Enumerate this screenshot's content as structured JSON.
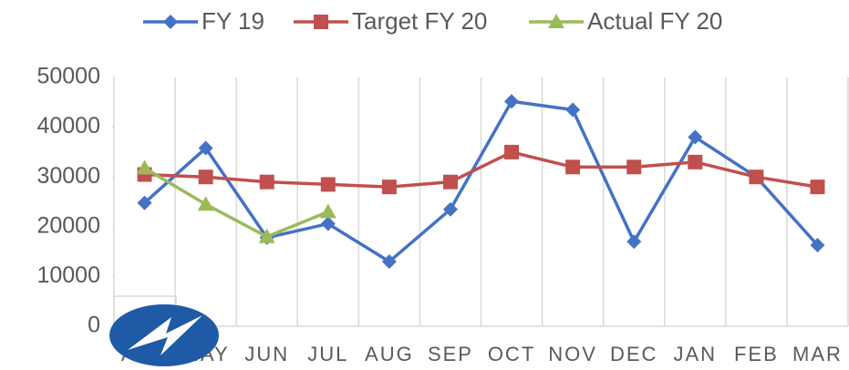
{
  "chart_data": {
    "type": "line",
    "categories": [
      "APR",
      "MAY",
      "JUN",
      "JUL",
      "AUG",
      "SEP",
      "OCT",
      "NOV",
      "DEC",
      "JAN",
      "FEB",
      "MAR"
    ],
    "series": [
      {
        "name": "FY 19",
        "color": "#4472c4",
        "marker": "diamond",
        "values": [
          24800,
          35800,
          17800,
          20600,
          13000,
          23500,
          45200,
          43500,
          17000,
          38000,
          30000,
          16300
        ]
      },
      {
        "name": "Target FY 20",
        "color": "#c0504d",
        "marker": "square",
        "values": [
          30500,
          30000,
          29000,
          28500,
          28000,
          29000,
          35000,
          32000,
          32000,
          33000,
          30000,
          28000
        ]
      },
      {
        "name": "Actual FY 20",
        "color": "#9bbb59",
        "marker": "triangle",
        "values": [
          31800,
          24500,
          18000,
          23000,
          null,
          null,
          null,
          null,
          null,
          null,
          null,
          null
        ]
      }
    ],
    "ylim": [
      0,
      50000
    ],
    "yticks": [
      0,
      10000,
      20000,
      30000,
      40000,
      50000
    ],
    "grid": "vertical",
    "legend": "top"
  }
}
